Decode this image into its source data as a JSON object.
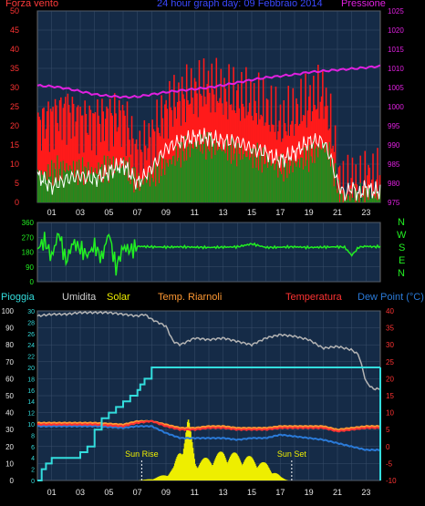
{
  "header": {
    "left_label": "Forza vento",
    "center_title": "24 hour graph day: 09 Febbraio 2014",
    "right_label": "Pressione"
  },
  "wind_dir_letters": [
    "N",
    "W",
    "S",
    "E",
    "N"
  ],
  "legend_bottom": {
    "pioggia": "Pioggia",
    "umidita": "Umidita",
    "solar": "Solar",
    "temp_riarnoli": "Temp. Riarnoli",
    "temperatura": "Temperatura",
    "dew_point": "Dew Point (°C)"
  },
  "annotations": {
    "sun_rise": "Sun Rise",
    "sun_set": "Sun Set"
  },
  "colors": {
    "wind_gust": "#ff1a1a",
    "wind_avg": "#1e8c1e",
    "wind_line": "#ffffff",
    "pressure": "#e020e0",
    "direction": "#22ee22",
    "humidity": "#b4b4b4",
    "rain": "#33dddd",
    "solar": "#eeee00",
    "temp_riarnoli": "#ff9933",
    "temperature": "#ff3333",
    "dew_point": "#2a7ad8"
  },
  "chart_data": [
    {
      "type": "area",
      "title": "24 hour graph day: 09 Febbraio 2014",
      "x_ticks": [
        "01",
        "03",
        "05",
        "07",
        "09",
        "11",
        "13",
        "15",
        "17",
        "19",
        "21",
        "23"
      ],
      "x_range": [
        0,
        24
      ],
      "ylabel_left": "Forza vento",
      "ylim_left": [
        0,
        50
      ],
      "y_ticks_left": [
        0,
        5,
        10,
        15,
        20,
        25,
        30,
        35,
        40,
        45,
        50
      ],
      "ylabel_right": "Pressione",
      "ylim_right": [
        975,
        1025
      ],
      "y_ticks_right": [
        975,
        980,
        985,
        990,
        995,
        1000,
        1005,
        1010,
        1015,
        1020,
        1025
      ],
      "grid": true,
      "series": [
        {
          "kind": "gust",
          "axis": "left",
          "x": [
            0,
            1,
            2,
            3,
            4,
            5,
            6,
            7,
            8,
            9,
            10,
            11,
            12,
            13,
            14,
            15,
            16,
            17,
            18,
            19,
            20,
            20.5,
            21,
            21.5,
            22,
            22.5,
            23,
            23.5,
            24
          ],
          "y": [
            20,
            22,
            24,
            21,
            21,
            22,
            22,
            12,
            17,
            24,
            27,
            29,
            30,
            28,
            27,
            26,
            24,
            20,
            23,
            26,
            28,
            20,
            7,
            3,
            6,
            4,
            7,
            6,
            7
          ]
        },
        {
          "kind": "average",
          "axis": "left",
          "x": [
            0,
            1,
            2,
            3,
            4,
            5,
            6,
            7,
            8,
            9,
            10,
            11,
            12,
            13,
            14,
            15,
            16,
            17,
            18,
            19,
            20,
            20.5,
            21,
            21.5,
            22,
            22.5,
            23,
            23.5,
            24
          ],
          "y": [
            7,
            8,
            9,
            8,
            8,
            9,
            10,
            5,
            7,
            10,
            13,
            15,
            15,
            14,
            13,
            12,
            11,
            9,
            10,
            12,
            15,
            12,
            3,
            1,
            2,
            1,
            2,
            2,
            2
          ]
        },
        {
          "kind": "line",
          "axis": "left",
          "x": [
            0,
            1,
            2,
            3,
            4,
            5,
            6,
            7,
            8,
            9,
            10,
            11,
            12,
            13,
            14,
            15,
            16,
            17,
            18,
            19,
            20,
            20.5,
            21,
            21.5,
            22,
            22.5,
            23,
            23.5,
            24
          ],
          "y": [
            7,
            4,
            6,
            7,
            6,
            8,
            10,
            5,
            9,
            14,
            16,
            17,
            17,
            16,
            16,
            14,
            13,
            11,
            13,
            16,
            16,
            12,
            5,
            2,
            4,
            2,
            4,
            3,
            3
          ]
        },
        {
          "kind": "pressure",
          "axis": "right",
          "x": [
            0,
            1,
            2,
            3,
            4,
            5,
            6,
            7,
            8,
            9,
            10,
            11,
            12,
            13,
            14,
            15,
            16,
            17,
            18,
            19,
            20,
            21,
            22,
            23,
            24
          ],
          "y": [
            1005.5,
            1005.3,
            1004.8,
            1004.0,
            1003.2,
            1002.8,
            1002.5,
            1002.6,
            1003.2,
            1003.8,
            1004.2,
            1004.6,
            1005.0,
            1005.6,
            1006.3,
            1007.0,
            1007.6,
            1008.0,
            1008.4,
            1009.0,
            1009.3,
            1009.6,
            1009.9,
            1010.2,
            1010.6
          ]
        }
      ]
    },
    {
      "type": "line",
      "title": "",
      "x_range": [
        0,
        24
      ],
      "ylim": [
        0,
        360
      ],
      "y_ticks": [
        0,
        90,
        180,
        270,
        360
      ],
      "grid": true,
      "series": [
        {
          "kind": "direction",
          "x": [
            0,
            0.5,
            1,
            1.5,
            2,
            2.5,
            3,
            3.5,
            4,
            4.5,
            5,
            5.5,
            6,
            6.5,
            7,
            8,
            9,
            10,
            11,
            12,
            13,
            14,
            15,
            16,
            17,
            18,
            19,
            20,
            21,
            21.5,
            22,
            22.5,
            23,
            23.5,
            24
          ],
          "y": [
            200,
            250,
            150,
            300,
            120,
            240,
            200,
            160,
            220,
            140,
            300,
            80,
            210,
            190,
            215,
            212,
            210,
            212,
            210,
            208,
            210,
            212,
            230,
            208,
            210,
            212,
            208,
            210,
            212,
            210,
            160,
            210,
            215,
            212,
            214
          ]
        }
      ]
    },
    {
      "type": "line",
      "title": "",
      "x_range": [
        0,
        24
      ],
      "ylim_left_outer": [
        0,
        100
      ],
      "y_ticks_left_outer": [
        0,
        10,
        20,
        30,
        40,
        50,
        60,
        70,
        80,
        90,
        100
      ],
      "ylim_left_inner": [
        0,
        30
      ],
      "y_ticks_left_inner": [
        0,
        2,
        4,
        6,
        8,
        10,
        12,
        14,
        16,
        18,
        20,
        22,
        24,
        26,
        28,
        30
      ],
      "ylim_right": [
        -10,
        40
      ],
      "y_ticks_right": [
        -10,
        -5,
        0,
        5,
        10,
        15,
        20,
        25,
        30,
        35,
        40
      ],
      "grid": true,
      "series": [
        {
          "kind": "humidity",
          "axis": "left_outer",
          "x": [
            0,
            1,
            2,
            3,
            4,
            5,
            6,
            7,
            7.5,
            8,
            9,
            9.5,
            10,
            11,
            12,
            13,
            14,
            15,
            16,
            17,
            18,
            19,
            20,
            21,
            22,
            22.5,
            23,
            23.5,
            24
          ],
          "y": [
            97,
            98,
            98,
            99,
            99,
            99,
            98,
            97,
            98,
            95,
            91,
            82,
            80,
            84,
            83,
            84,
            82,
            80,
            84,
            86,
            85,
            83,
            78,
            79,
            77,
            74,
            58,
            54,
            54
          ]
        },
        {
          "kind": "rain",
          "axis": "left_inner",
          "x": [
            0,
            0.3,
            0.6,
            1,
            2,
            3,
            3.5,
            4,
            4.5,
            5,
            5.5,
            6,
            6.5,
            7,
            7.2,
            7.5,
            8,
            9,
            10,
            11,
            12,
            13,
            14,
            15,
            16,
            16.5,
            17,
            18,
            19,
            20,
            21,
            22,
            23,
            24
          ],
          "y": [
            0,
            2,
            3,
            4,
            4,
            5,
            6,
            9,
            11,
            12,
            13,
            14,
            15,
            16,
            17,
            18,
            20,
            20,
            20,
            20,
            20,
            20,
            20,
            20,
            20,
            20,
            20,
            20,
            20,
            20,
            20,
            20,
            20,
            20
          ]
        },
        {
          "kind": "temp_riarnoli",
          "axis": "right",
          "x": [
            0,
            2,
            4,
            6,
            7,
            8,
            9,
            10,
            11,
            12,
            13,
            14,
            15,
            16,
            17,
            18,
            19,
            20,
            21,
            22,
            23,
            24
          ],
          "y": [
            7,
            7,
            7,
            6.5,
            7.5,
            7.5,
            6.5,
            5.5,
            5.5,
            6,
            6,
            5.5,
            5.5,
            5.5,
            6,
            6,
            6,
            6,
            5,
            5.5,
            6,
            6
          ]
        },
        {
          "kind": "temperature",
          "axis": "right",
          "x": [
            0,
            2,
            4,
            6,
            7,
            8,
            9,
            10,
            11,
            12,
            13,
            14,
            15,
            16,
            17,
            18,
            19,
            20,
            21,
            22,
            23,
            24
          ],
          "y": [
            6.5,
            6.5,
            6.5,
            6,
            7,
            7.5,
            6,
            5,
            5,
            5.5,
            5.5,
            5,
            5,
            5,
            5.5,
            5.5,
            5.5,
            5.5,
            4.5,
            5,
            5.5,
            5.5
          ]
        },
        {
          "kind": "dew_point",
          "axis": "right",
          "x": [
            0,
            2,
            4,
            6,
            7,
            8,
            9,
            10,
            11,
            12,
            13,
            14,
            15,
            16,
            17,
            18,
            19,
            20,
            21,
            22,
            23,
            24
          ],
          "y": [
            6,
            6,
            6,
            5.5,
            6,
            6,
            4,
            2.5,
            2.5,
            2.5,
            2.5,
            2,
            2.5,
            2.5,
            3.5,
            3,
            2.5,
            2,
            1,
            0,
            -1,
            -1
          ]
        },
        {
          "kind": "solar",
          "axis": "left_outer",
          "x": [
            7,
            8,
            9,
            9.5,
            10,
            10.5,
            11,
            12,
            13,
            14,
            15,
            16,
            16.5,
            17,
            17.5
          ],
          "y": [
            0,
            1,
            4,
            8,
            22,
            38,
            12,
            14,
            18,
            16,
            14,
            10,
            6,
            2,
            0
          ]
        }
      ]
    }
  ]
}
